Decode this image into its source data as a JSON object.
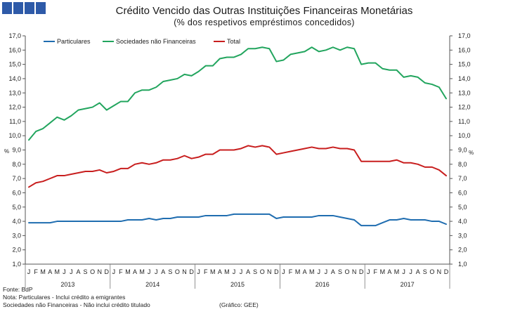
{
  "chart_data": {
    "type": "line",
    "title": "Crédito Vencido das Outras Instituições Financeiras Monetárias",
    "subtitle": "(% dos respetivos empréstimos concedidos)",
    "y_unit": "%",
    "ylim": [
      1,
      17
    ],
    "y_ticks": [
      "1,0",
      "2,0",
      "3,0",
      "4,0",
      "5,0",
      "6,0",
      "7,0",
      "8,0",
      "9,0",
      "10,0",
      "11,0",
      "12,0",
      "13,0",
      "14,0",
      "15,0",
      "16,0",
      "17,0"
    ],
    "x": [
      "J",
      "F",
      "M",
      "A",
      "M",
      "J",
      "J",
      "A",
      "S",
      "O",
      "N",
      "D",
      "J",
      "F",
      "M",
      "A",
      "M",
      "J",
      "J",
      "A",
      "S",
      "O",
      "N",
      "D",
      "J",
      "F",
      "M",
      "A",
      "M",
      "J",
      "J",
      "A",
      "S",
      "O",
      "N",
      "D",
      "J",
      "F",
      "M",
      "A",
      "M",
      "J",
      "J",
      "A",
      "S",
      "O",
      "N",
      "D",
      "J",
      "F",
      "M",
      "A",
      "M",
      "J",
      "J",
      "A",
      "S",
      "O",
      "N",
      "D"
    ],
    "years": [
      "2013",
      "2014",
      "2015",
      "2016",
      "2017"
    ],
    "grid": false,
    "legend_position": "top-left",
    "series": [
      {
        "name": "Particulares",
        "color": "#1F6DB0",
        "values": [
          3.9,
          3.9,
          3.9,
          3.9,
          4.0,
          4.0,
          4.0,
          4.0,
          4.0,
          4.0,
          4.0,
          4.0,
          4.0,
          4.0,
          4.1,
          4.1,
          4.1,
          4.2,
          4.1,
          4.2,
          4.2,
          4.3,
          4.3,
          4.3,
          4.3,
          4.4,
          4.4,
          4.4,
          4.4,
          4.5,
          4.5,
          4.5,
          4.5,
          4.5,
          4.5,
          4.2,
          4.3,
          4.3,
          4.3,
          4.3,
          4.3,
          4.4,
          4.4,
          4.4,
          4.3,
          4.2,
          4.1,
          3.7,
          3.7,
          3.7,
          3.9,
          4.1,
          4.1,
          4.2,
          4.1,
          4.1,
          4.1,
          4.0,
          4.0,
          3.8
        ]
      },
      {
        "name": "Sociedades não Financeiras",
        "color": "#22A55E",
        "values": [
          9.7,
          10.3,
          10.5,
          10.9,
          11.3,
          11.1,
          11.4,
          11.8,
          11.9,
          12.0,
          12.3,
          11.8,
          12.1,
          12.4,
          12.4,
          13.0,
          13.2,
          13.2,
          13.4,
          13.8,
          13.9,
          14.0,
          14.3,
          14.2,
          14.5,
          14.9,
          14.9,
          15.4,
          15.5,
          15.5,
          15.7,
          16.1,
          16.1,
          16.2,
          16.1,
          15.2,
          15.3,
          15.7,
          15.8,
          15.9,
          16.2,
          15.9,
          16.0,
          16.2,
          16.0,
          16.2,
          16.1,
          15.0,
          15.1,
          15.1,
          14.7,
          14.6,
          14.6,
          14.1,
          14.2,
          14.1,
          13.7,
          13.6,
          13.4,
          12.6
        ]
      },
      {
        "name": "Total",
        "color": "#C81E1E",
        "values": [
          6.4,
          6.7,
          6.8,
          7.0,
          7.2,
          7.2,
          7.3,
          7.4,
          7.5,
          7.5,
          7.6,
          7.4,
          7.5,
          7.7,
          7.7,
          8.0,
          8.1,
          8.0,
          8.1,
          8.3,
          8.3,
          8.4,
          8.6,
          8.4,
          8.5,
          8.7,
          8.7,
          9.0,
          9.0,
          9.0,
          9.1,
          9.3,
          9.2,
          9.3,
          9.2,
          8.7,
          8.8,
          8.9,
          9.0,
          9.1,
          9.2,
          9.1,
          9.1,
          9.2,
          9.1,
          9.1,
          9.0,
          8.2,
          8.2,
          8.2,
          8.2,
          8.2,
          8.3,
          8.1,
          8.1,
          8.0,
          7.8,
          7.8,
          7.6,
          7.2
        ]
      }
    ]
  },
  "logo": {
    "color": "#2E5AA8"
  },
  "footer": {
    "source": "Fonte: BdP",
    "note_1": "Nota: Particulares - Inclui crédito a emigrantes",
    "note_2": "Sociedades não Financeiras - Não inclui crédito titulado",
    "credit": "(Gráfico: GEE)"
  }
}
